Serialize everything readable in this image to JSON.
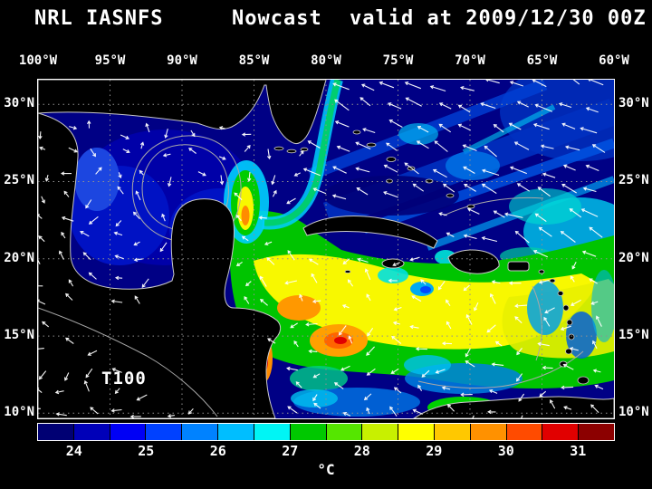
{
  "title": {
    "model": "NRL IASNFS",
    "product": "Nowcast",
    "valid": "valid at 2009/12/30 00Z"
  },
  "axes": {
    "lon_labels": [
      "100°W",
      "95°W",
      "90°W",
      "85°W",
      "80°W",
      "75°W",
      "70°W",
      "65°W",
      "60°W"
    ],
    "lat_labels_left": [
      "30°N",
      "25°N",
      "20°N",
      "15°N",
      "10°N"
    ],
    "lat_labels_right": [
      "30°N",
      "25°N",
      "20°N",
      "15°N",
      "10°N"
    ]
  },
  "map": {
    "annotation": "T100"
  },
  "colorbar": {
    "tick_labels": [
      "24",
      "25",
      "26",
      "27",
      "28",
      "29",
      "30",
      "31"
    ],
    "unit": "°C",
    "segment_colors": [
      "#000073",
      "#0000b8",
      "#0000f5",
      "#0041ff",
      "#0082ff",
      "#00beff",
      "#00f5f5",
      "#00c800",
      "#55e600",
      "#c8f000",
      "#ffff00",
      "#ffc800",
      "#ff9100",
      "#ff4b00",
      "#e10000",
      "#8c0000"
    ]
  },
  "colors": {
    "background": "#000000",
    "text": "#ffffff",
    "frame": "#ffffff",
    "grid": "#909090",
    "coastline": "#c8c8c8",
    "land": "#000000",
    "ocean_deep": "#000085",
    "vectors": "#ffffff"
  }
}
